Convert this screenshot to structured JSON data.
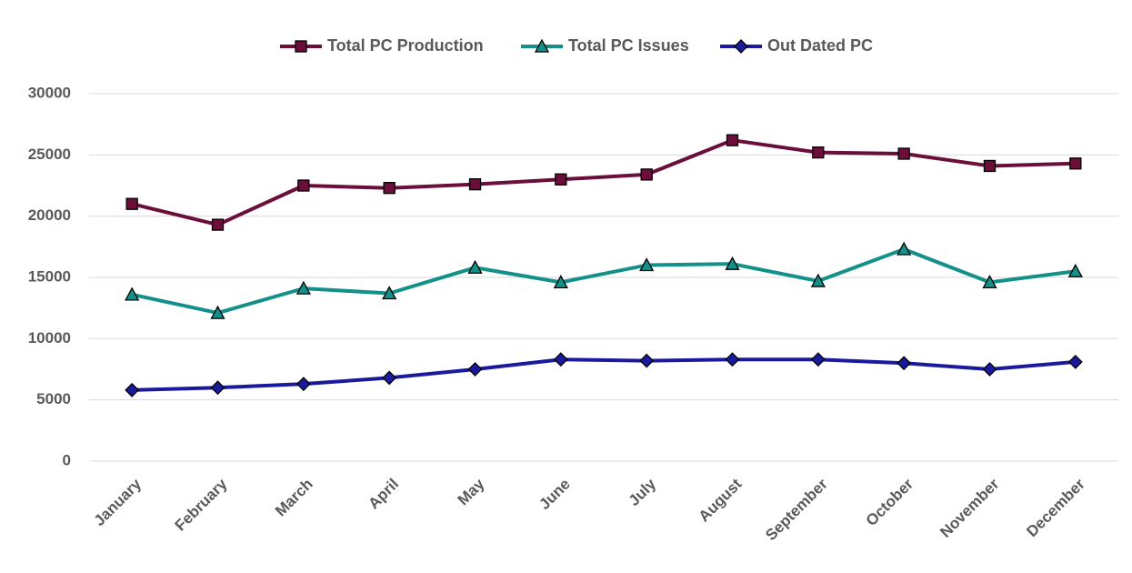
{
  "chart_data": {
    "type": "line",
    "categories": [
      "January",
      "February",
      "March",
      "April",
      "May",
      "June",
      "July",
      "August",
      "September",
      "October",
      "November",
      "December"
    ],
    "series": [
      {
        "name": "Total PC Production",
        "color": "#6b0f3a",
        "marker": "square",
        "values": [
          21000,
          19300,
          22500,
          22300,
          22600,
          23000,
          23400,
          26200,
          25200,
          25100,
          24100,
          24300
        ]
      },
      {
        "name": "Total PC Issues",
        "color": "#13908a",
        "marker": "triangle",
        "values": [
          13600,
          12100,
          14100,
          13700,
          15800,
          14600,
          16000,
          16100,
          14700,
          17300,
          14600,
          15500
        ]
      },
      {
        "name": "Out Dated PC",
        "color": "#1a1a9e",
        "marker": "diamond",
        "values": [
          5800,
          6000,
          6300,
          6800,
          7500,
          8300,
          8200,
          8300,
          8300,
          8000,
          7500,
          8100
        ]
      }
    ],
    "ylim": [
      0,
      30000
    ],
    "yticks": [
      0,
      5000,
      10000,
      15000,
      20000,
      25000,
      30000
    ],
    "grid": true,
    "legend": "top"
  }
}
